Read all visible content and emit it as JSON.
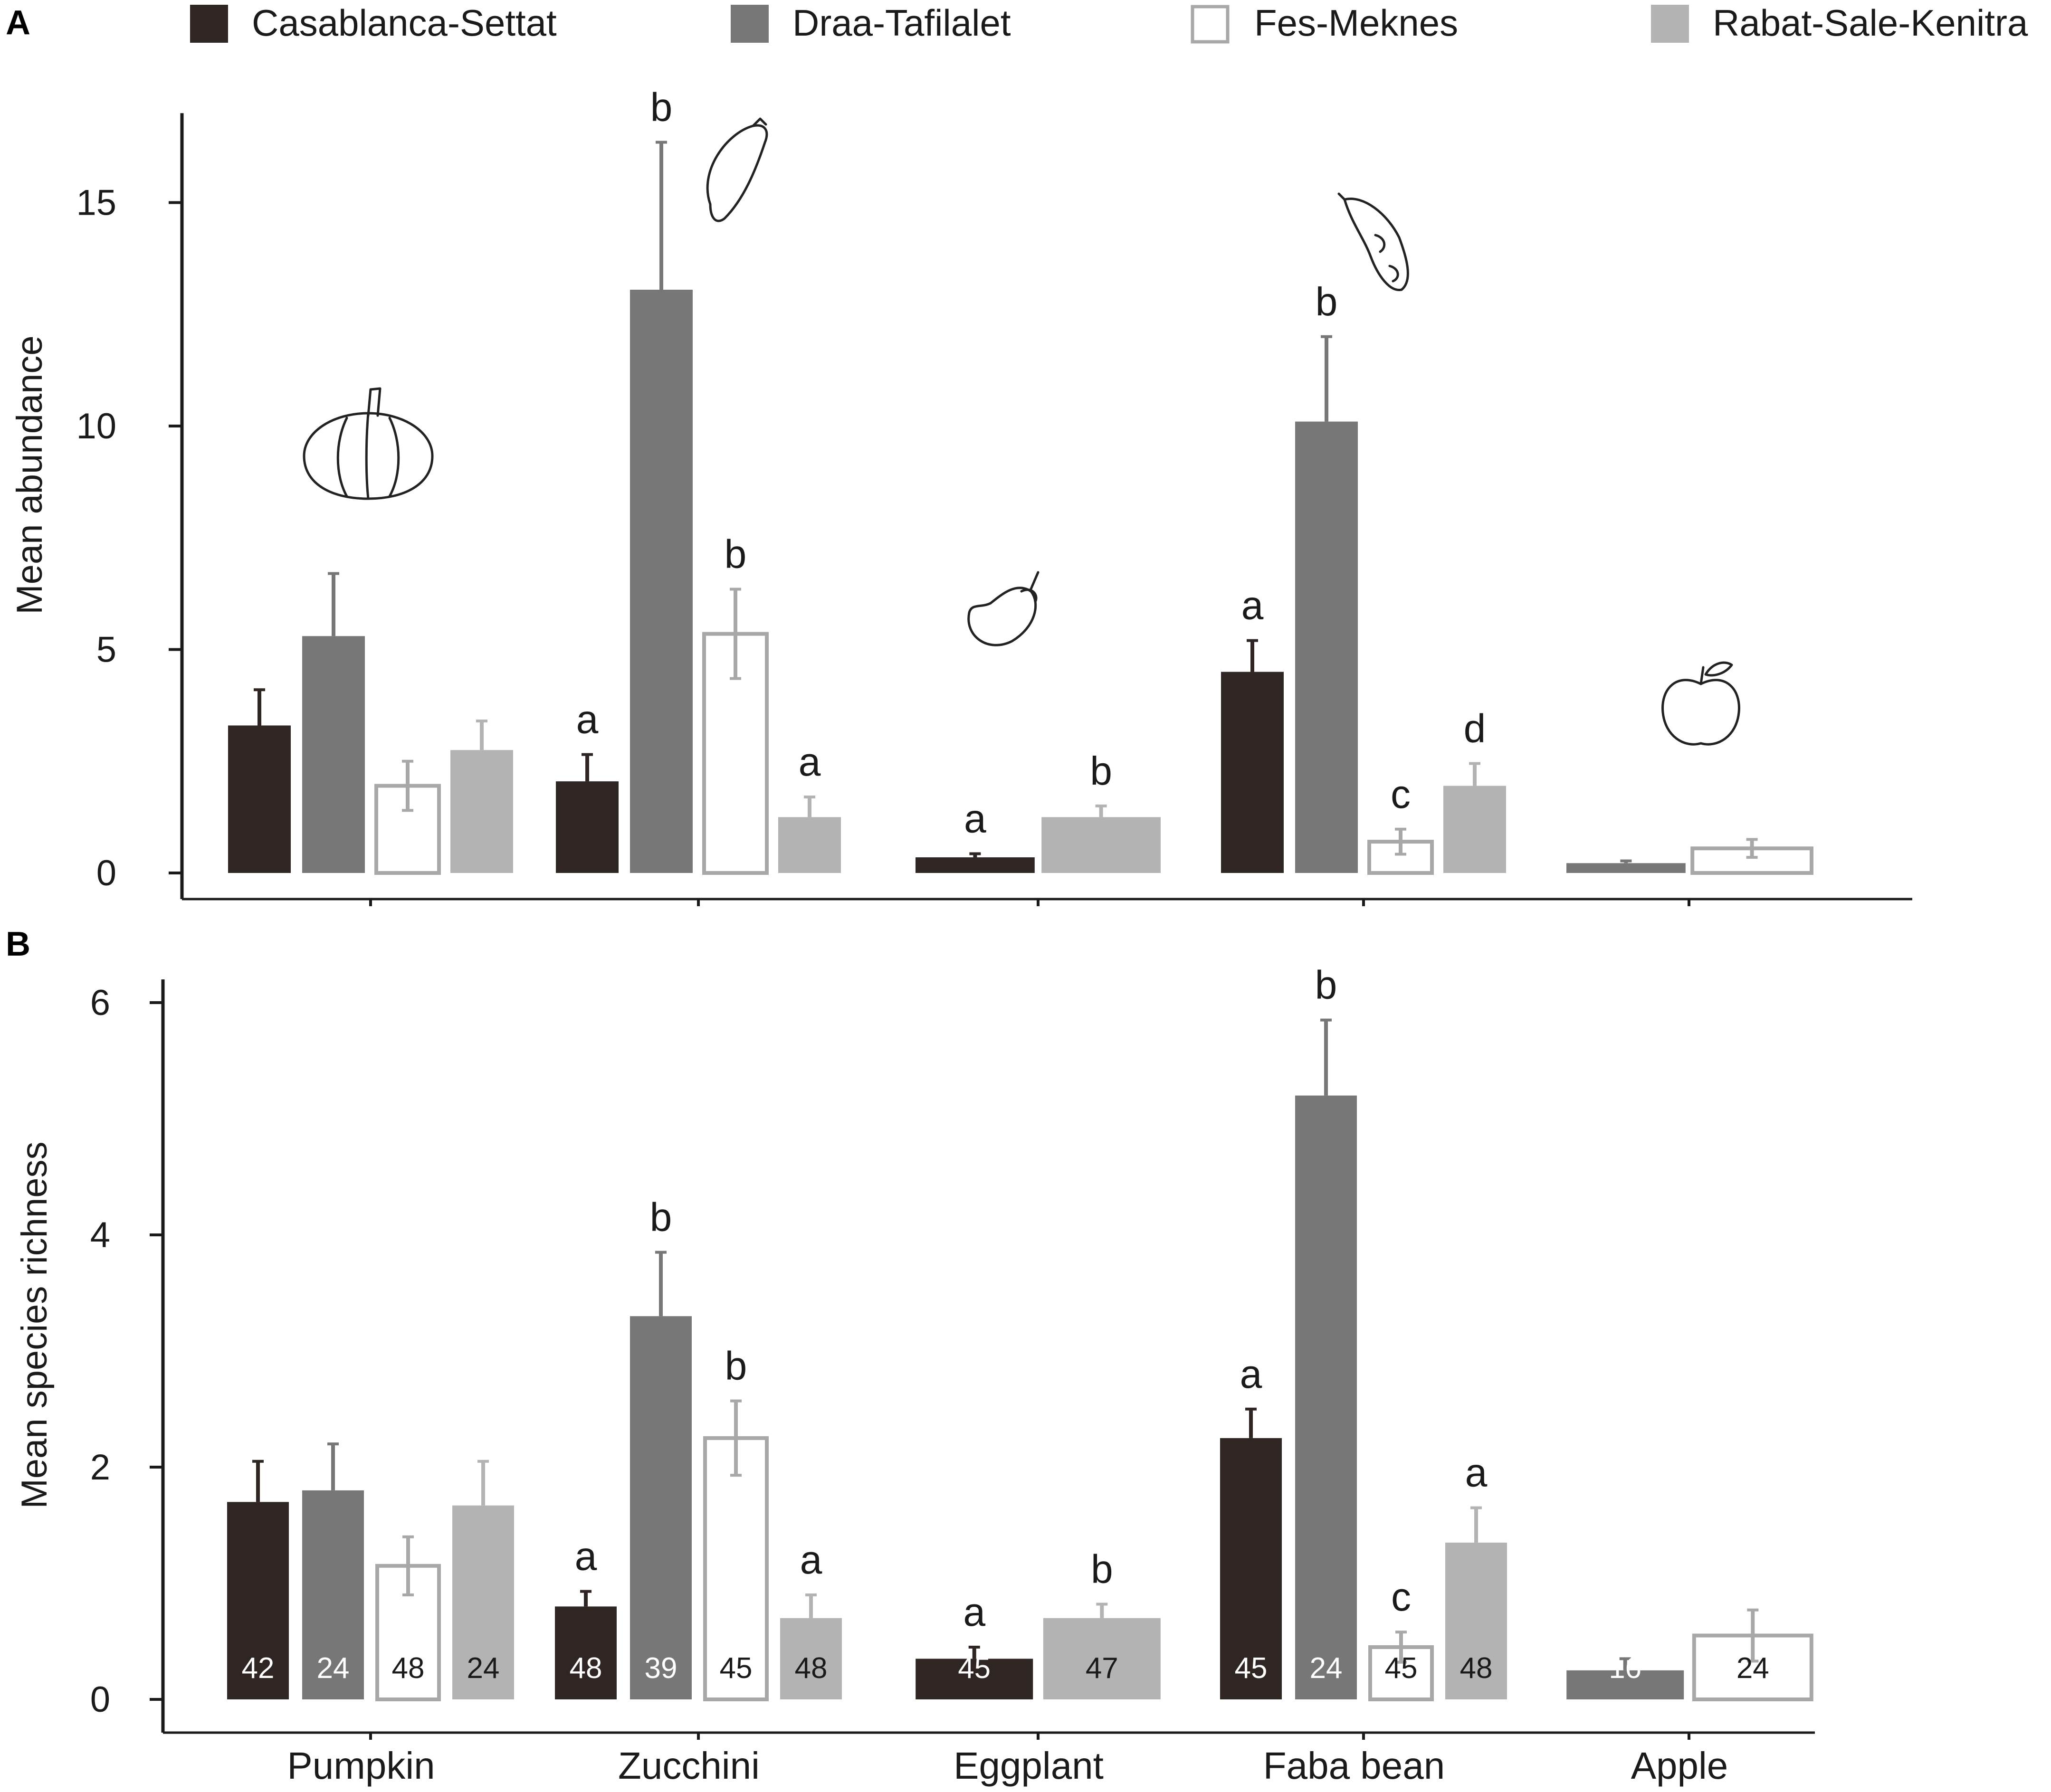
{
  "colors": {
    "casablanca": "#2f2522",
    "draa": "#777777",
    "fes_fill": "#ffffff",
    "fes_stroke": "#a8a8a8",
    "rabat": "#b3b3b3",
    "axis": "#1a1a1a"
  },
  "legend": [
    {
      "key": "casablanca",
      "label": "Casablanca-Settat"
    },
    {
      "key": "draa",
      "label": "Draa-Tafilalet"
    },
    {
      "key": "fes",
      "label": "Fes-Meknes"
    },
    {
      "key": "rabat",
      "label": "Rabat-Sale-Kenitra"
    }
  ],
  "chart_data": [
    {
      "panel": "A",
      "type": "bar",
      "ylabel": "Mean abundance",
      "ylim": [
        0,
        17
      ],
      "yticks": [
        0,
        5,
        10,
        15
      ],
      "categories": [
        "Pumpkin",
        "Zucchini",
        "Eggplant",
        "Faba bean",
        "Apple"
      ],
      "groups": [
        {
          "category": "Pumpkin",
          "icon": "pumpkin-icon",
          "bars": [
            {
              "series": "casablanca",
              "value": 3.3,
              "error": 0.8,
              "letter": ""
            },
            {
              "series": "draa",
              "value": 5.3,
              "error": 1.4,
              "letter": ""
            },
            {
              "series": "fes",
              "value": 1.95,
              "error": 0.55,
              "letter": ""
            },
            {
              "series": "rabat",
              "value": 2.75,
              "error": 0.65,
              "letter": ""
            }
          ]
        },
        {
          "category": "Zucchini",
          "icon": "zucchini-icon",
          "bars": [
            {
              "series": "casablanca",
              "value": 2.05,
              "error": 0.6,
              "letter": "a"
            },
            {
              "series": "draa",
              "value": 13.05,
              "error": 3.3,
              "letter": "b"
            },
            {
              "series": "fes",
              "value": 5.35,
              "error": 1.0,
              "letter": "b"
            },
            {
              "series": "rabat",
              "value": 1.25,
              "error": 0.45,
              "letter": "a"
            }
          ]
        },
        {
          "category": "Eggplant",
          "icon": "eggplant-icon",
          "bars": [
            {
              "series": "casablanca",
              "value": 0.35,
              "error": 0.08,
              "letter": "a"
            },
            {
              "series": "rabat",
              "value": 1.25,
              "error": 0.25,
              "letter": "b"
            }
          ]
        },
        {
          "category": "Faba bean",
          "icon": "faba-bean-icon",
          "bars": [
            {
              "series": "casablanca",
              "value": 4.5,
              "error": 0.7,
              "letter": "a"
            },
            {
              "series": "draa",
              "value": 10.1,
              "error": 1.9,
              "letter": "b"
            },
            {
              "series": "fes",
              "value": 0.7,
              "error": 0.28,
              "letter": "c"
            },
            {
              "series": "rabat",
              "value": 1.95,
              "error": 0.5,
              "letter": "d"
            }
          ]
        },
        {
          "category": "Apple",
          "icon": "apple-icon",
          "bars": [
            {
              "series": "draa",
              "value": 0.22,
              "error": 0.05,
              "letter": ""
            },
            {
              "series": "fes",
              "value": 0.55,
              "error": 0.2,
              "letter": ""
            }
          ]
        }
      ]
    },
    {
      "panel": "B",
      "type": "bar",
      "ylabel": "Mean species richness",
      "ylim": [
        0,
        6.2
      ],
      "yticks": [
        0,
        2,
        4,
        6
      ],
      "categories": [
        "Pumpkin",
        "Zucchini",
        "Eggplant",
        "Faba bean",
        "Apple"
      ],
      "groups": [
        {
          "category": "Pumpkin",
          "bars": [
            {
              "series": "casablanca",
              "value": 1.7,
              "error": 0.35,
              "letter": "",
              "n": "42"
            },
            {
              "series": "draa",
              "value": 1.8,
              "error": 0.4,
              "letter": "",
              "n": "24"
            },
            {
              "series": "fes",
              "value": 1.15,
              "error": 0.25,
              "letter": "",
              "n": "48"
            },
            {
              "series": "rabat",
              "value": 1.67,
              "error": 0.38,
              "letter": "",
              "n": "24"
            }
          ]
        },
        {
          "category": "Zucchini",
          "bars": [
            {
              "series": "casablanca",
              "value": 0.8,
              "error": 0.13,
              "letter": "a",
              "n": "48"
            },
            {
              "series": "draa",
              "value": 3.3,
              "error": 0.55,
              "letter": "b",
              "n": "39"
            },
            {
              "series": "fes",
              "value": 2.25,
              "error": 0.32,
              "letter": "b",
              "n": "45"
            },
            {
              "series": "rabat",
              "value": 0.7,
              "error": 0.2,
              "letter": "a",
              "n": "48"
            }
          ]
        },
        {
          "category": "Eggplant",
          "bars": [
            {
              "series": "casablanca",
              "value": 0.35,
              "error": 0.1,
              "letter": "a",
              "n": "45"
            },
            {
              "series": "rabat",
              "value": 0.7,
              "error": 0.12,
              "letter": "b",
              "n": "47"
            }
          ]
        },
        {
          "category": "Faba bean",
          "bars": [
            {
              "series": "casablanca",
              "value": 2.25,
              "error": 0.25,
              "letter": "a",
              "n": "45"
            },
            {
              "series": "draa",
              "value": 5.2,
              "error": 0.65,
              "letter": "b",
              "n": "24"
            },
            {
              "series": "fes",
              "value": 0.45,
              "error": 0.13,
              "letter": "c",
              "n": "45"
            },
            {
              "series": "rabat",
              "value": 1.35,
              "error": 0.3,
              "letter": "a",
              "n": "48"
            }
          ]
        },
        {
          "category": "Apple",
          "bars": [
            {
              "series": "draa",
              "value": 0.25,
              "error": 0.1,
              "letter": "",
              "n": "16"
            },
            {
              "series": "fes",
              "value": 0.55,
              "error": 0.22,
              "letter": "",
              "n": "24"
            }
          ]
        }
      ]
    }
  ]
}
